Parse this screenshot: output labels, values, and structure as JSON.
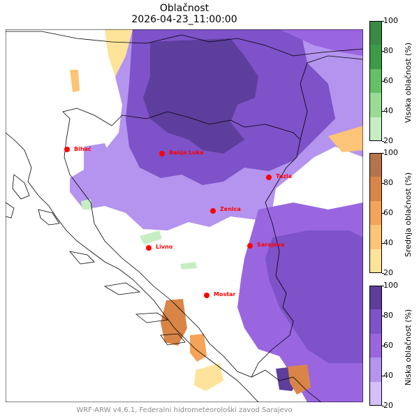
{
  "title": {
    "line1": "Oblačnost",
    "line2": "2026-04-23_11:00:00"
  },
  "footer": "WRF-ARW v4.6.1, Federalni hidrometeorološki zavod Sarajevo",
  "cities": [
    {
      "name": "Bihać"
    },
    {
      "name": "Banja Luka"
    },
    {
      "name": "Tuzla"
    },
    {
      "name": "Zenica"
    },
    {
      "name": "Livno"
    },
    {
      "name": "Sarajevo"
    },
    {
      "name": "Mostar"
    }
  ],
  "colorbars": [
    {
      "label": "Visoka oblačnost (%)",
      "ticks": [
        "100",
        "80",
        "60",
        "40",
        "20"
      ],
      "colors": [
        "#c7eec3",
        "#9bdc95",
        "#64bf65",
        "#3c9a48",
        "#3a8a46"
      ]
    },
    {
      "label": "Srednja oblačnost (%)",
      "ticks": [
        "100",
        "80",
        "60",
        "40",
        "20"
      ],
      "colors": [
        "#fde49a",
        "#fcc476",
        "#f5a25a",
        "#d98548",
        "#b5744a"
      ]
    },
    {
      "label": "Niska oblačnost (%)",
      "ticks": [
        "100",
        "80",
        "60",
        "40",
        "20"
      ],
      "colors": [
        "#d3c0f8",
        "#b494ee",
        "#9966e0",
        "#7e52c8",
        "#5d3e9c"
      ]
    }
  ]
}
